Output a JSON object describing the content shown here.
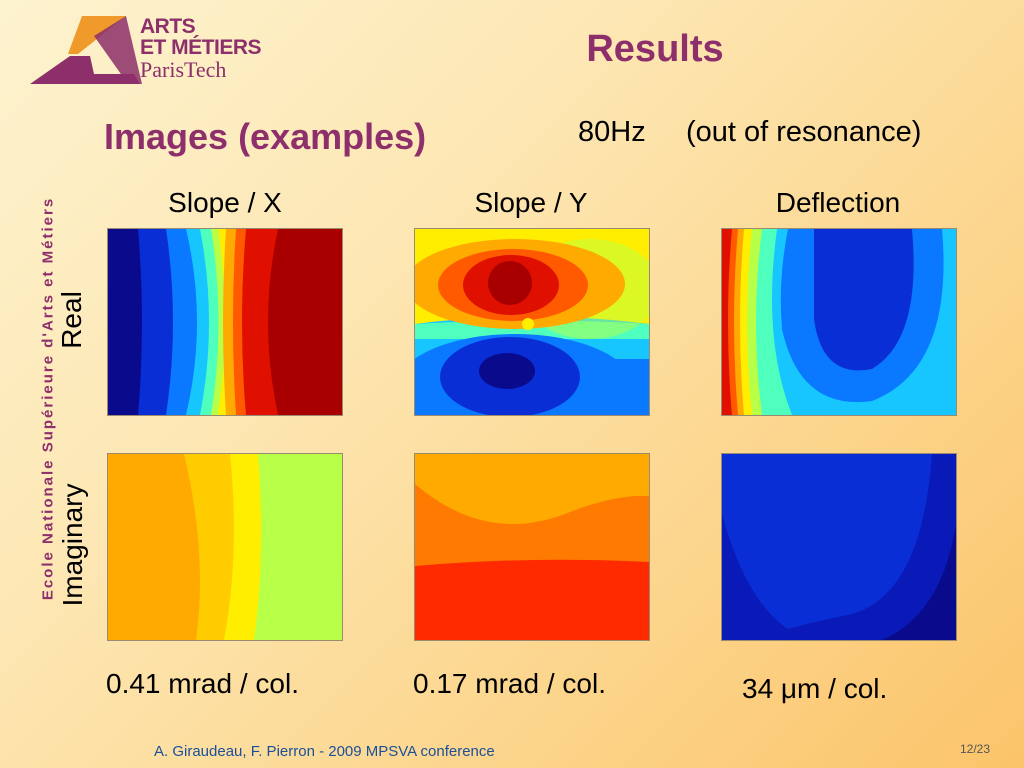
{
  "logo": {
    "line1": "ARTS",
    "line2": "ET MÉTIERS",
    "line3": "ParisTech",
    "colors": {
      "orange": "#ef9a2b",
      "plum": "#8c2f6a"
    }
  },
  "slide": {
    "title": "Results",
    "side_text": "Ecole Nationale Supérieure d'Arts et Métiers",
    "subtitle": "Images (examples)",
    "frequency": "80Hz",
    "frequency_note": "(out of resonance)",
    "columns": [
      "Slope / X",
      "Slope / Y",
      "Deflection"
    ],
    "rows": [
      "Real",
      "Imaginary"
    ],
    "scales": [
      "0.41 mrad / col.",
      "0.17 mrad / col.",
      "34 μm / col."
    ],
    "footer": "A. Giraudeau, F. Pierron - 2009 MPSVA conference",
    "page": "12/23"
  },
  "colormap": [
    "#0a0a8c",
    "#0a2ed6",
    "#0a78ff",
    "#17c6ff",
    "#4fffbd",
    "#b8ff47",
    "#ffee00",
    "#ffaa00",
    "#ff5a00",
    "#e01000",
    "#a80000"
  ]
}
